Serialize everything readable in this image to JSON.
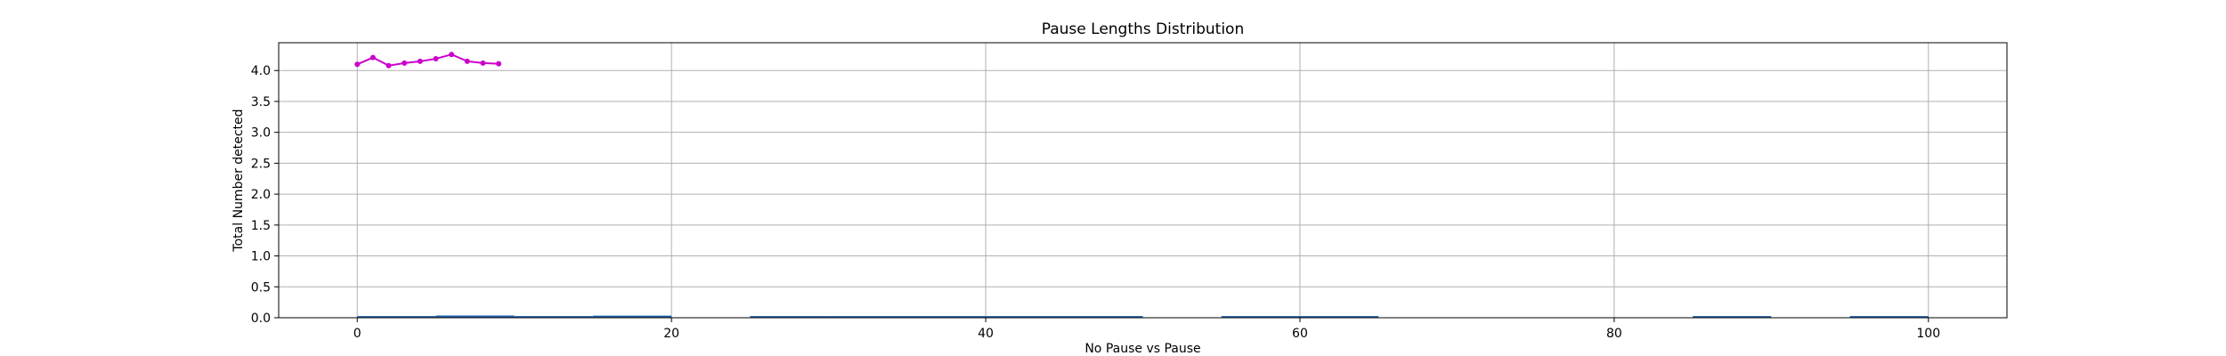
{
  "chart_data": {
    "type": "line",
    "title": "Pause Lengths Distribution",
    "xlabel": "No Pause vs Pause",
    "ylabel": "Total Number detected",
    "xlim": [
      -5,
      105
    ],
    "ylim": [
      0,
      4.45
    ],
    "x_ticks": [
      0,
      20,
      40,
      60,
      80,
      100
    ],
    "x_tick_labels": [
      "0",
      "20",
      "40",
      "60",
      "80",
      "100"
    ],
    "y_ticks": [
      0,
      0.5,
      1,
      1.5,
      2,
      2.5,
      3,
      3.5,
      4
    ],
    "y_tick_labels": [
      "0.0",
      "0.5",
      "1.0",
      "1.5",
      "2.0",
      "2.5",
      "3.0",
      "3.5",
      "4.0"
    ],
    "grid": true,
    "series": [
      {
        "color": "#cc00cc",
        "style": "line-with-dots",
        "x": [
          0,
          1,
          2,
          3,
          4,
          5,
          6,
          7,
          8,
          9
        ],
        "y": [
          4.1,
          4.21,
          4.08,
          4.12,
          4.15,
          4.19,
          4.26,
          4.15,
          4.12,
          4.11
        ]
      },
      {
        "color": "#1f5fa8",
        "style": "step-segments",
        "segments": [
          {
            "x0": 0,
            "x1": 5,
            "y": 0.005
          },
          {
            "x0": 5,
            "x1": 10,
            "y": 0.015
          },
          {
            "x0": 10,
            "x1": 15,
            "y": 0.005
          },
          {
            "x0": 15,
            "x1": 20,
            "y": 0.012
          },
          {
            "x0": 25,
            "x1": 30,
            "y": 0.005
          },
          {
            "x0": 30,
            "x1": 50,
            "y": 0.005
          },
          {
            "x0": 55,
            "x1": 65,
            "y": 0.005
          },
          {
            "x0": 85,
            "x1": 90,
            "y": 0.005
          },
          {
            "x0": 95,
            "x1": 100,
            "y": 0.005
          }
        ]
      }
    ]
  }
}
